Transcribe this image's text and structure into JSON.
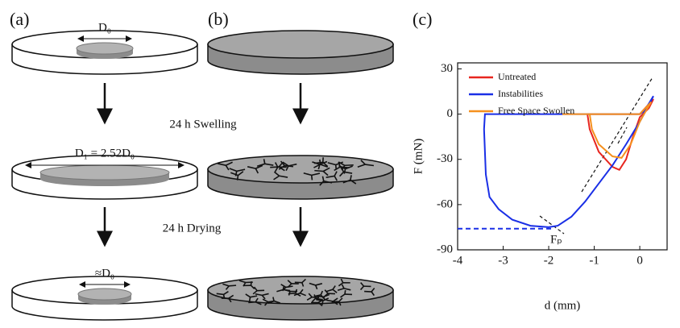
{
  "panels": {
    "a": {
      "label": "(a)",
      "d0": "D₀",
      "d1": "D₁ = 2.52D₀",
      "d_final": "≈D₀"
    },
    "b": {
      "label": "(b)"
    },
    "c": {
      "label": "(c)"
    }
  },
  "steps": {
    "swelling": "24 h Swelling",
    "drying": "24 h Drying"
  },
  "chart_data": {
    "type": "line",
    "xlabel": "d (mm)",
    "ylabel": "F (mN)",
    "xlim": [
      -4,
      0.6
    ],
    "ylim": [
      -90,
      34
    ],
    "xticks": [
      -4,
      -3,
      -2,
      -1,
      0
    ],
    "yticks": [
      -90,
      -60,
      -30,
      0,
      30
    ],
    "legend": "top-left",
    "annotation": "Fₚ",
    "hlines": [
      {
        "y": -76,
        "color": "#1a2fe6",
        "dash": true
      }
    ],
    "series": [
      {
        "name": "Untreated",
        "color": "#e8261f",
        "x": [
          0.3,
          0,
          -0.5,
          -1.0,
          -1.15,
          -1.1,
          -0.9,
          -0.6,
          -0.45,
          -0.3,
          -0.15,
          0,
          0.2,
          0.3
        ],
        "values": [
          10,
          0,
          0,
          0,
          0,
          -10,
          -25,
          -35,
          -37,
          -30,
          -15,
          -2,
          4,
          10
        ]
      },
      {
        "name": "Instabilities",
        "color": "#1a2fe6",
        "x": [
          0.3,
          0.1,
          0,
          -1,
          -2,
          -3,
          -3.4,
          -3.42,
          -3.38,
          -3.3,
          -3.1,
          -2.8,
          -2.4,
          -2.0,
          -1.8,
          -1.5,
          -1.2,
          -0.9,
          -0.6,
          -0.3,
          0,
          0.2,
          0.3
        ],
        "values": [
          12,
          2,
          0,
          0,
          0,
          0,
          0,
          -10,
          -40,
          -55,
          -63,
          -70,
          -74,
          -75,
          -74,
          -68,
          -58,
          -46,
          -34,
          -20,
          -5,
          6,
          12
        ]
      },
      {
        "name": "Free Space Swollen",
        "color": "#f5901e",
        "x": [
          0.25,
          0,
          -1,
          -1.7,
          -1.1,
          -1.05,
          -0.9,
          -0.6,
          -0.4,
          -0.2,
          0,
          0.15,
          0.25
        ],
        "values": [
          8,
          0,
          0,
          0,
          0,
          -10,
          -20,
          -28,
          -29,
          -20,
          -5,
          3,
          8
        ]
      }
    ]
  }
}
